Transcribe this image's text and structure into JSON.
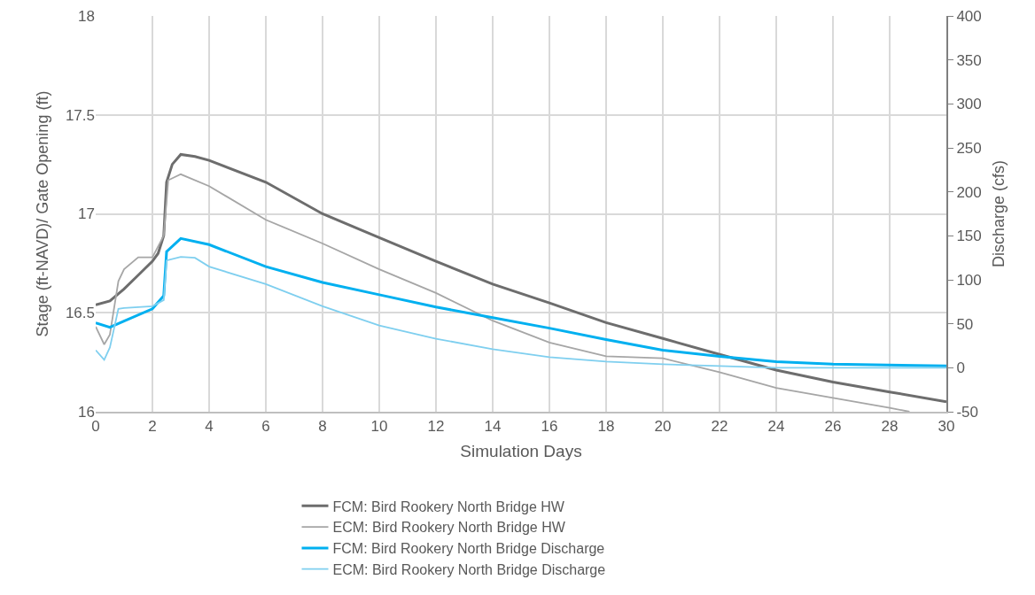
{
  "chart_data": {
    "type": "line",
    "xlabel": "Simulation Days",
    "ylabel": "Stage (ft-NAVD)/ Gate Opening (ft)",
    "y2label": "Discharge (cfs)",
    "xlim": [
      0,
      30
    ],
    "xticks": [
      0,
      2,
      4,
      6,
      8,
      10,
      12,
      14,
      16,
      18,
      20,
      22,
      24,
      26,
      28,
      30
    ],
    "ylim": [
      16,
      18
    ],
    "yticks": [
      16,
      16.5,
      17,
      17.5,
      18
    ],
    "y2lim": [
      -50,
      400
    ],
    "y2ticks": [
      -50,
      0,
      50,
      100,
      150,
      200,
      250,
      300,
      350,
      400
    ],
    "grid": true,
    "legend": "bottom",
    "marker": "none",
    "line_style": "solid",
    "series": [
      {
        "name": "FCM: Bird Rookery North Bridge HW",
        "color": "#6d6d6d",
        "x": [
          0,
          0.5,
          1,
          1.5,
          2,
          2.2,
          2.4,
          2.5,
          2.7,
          3,
          3.5,
          4,
          6,
          8,
          10,
          12,
          14,
          16,
          18,
          20,
          22,
          24,
          26,
          28,
          30
        ],
        "values": [
          16.54,
          16.56,
          16.62,
          16.69,
          16.76,
          16.8,
          16.89,
          17.16,
          17.25,
          17.3,
          17.29,
          17.27,
          17.16,
          17.0,
          16.88,
          16.76,
          16.645,
          16.55,
          16.45,
          16.37,
          16.29,
          16.21,
          16.15,
          16.1,
          16.05
        ]
      },
      {
        "name": "ECM: Bird Rookery North Bridge HW",
        "color": "#a6a6a6",
        "x": [
          0,
          0.3,
          0.5,
          0.8,
          1,
          1.5,
          2,
          2.4,
          2.56,
          3,
          4,
          6,
          8,
          10,
          12,
          14,
          16,
          18,
          20,
          22,
          24,
          26,
          28,
          28.7
        ],
        "values": [
          16.43,
          16.34,
          16.39,
          16.66,
          16.72,
          16.78,
          16.78,
          16.89,
          17.17,
          17.2,
          17.14,
          16.97,
          16.85,
          16.72,
          16.6,
          16.46,
          16.35,
          16.28,
          16.27,
          16.2,
          16.12,
          16.07,
          16.02,
          16.0
        ]
      },
      {
        "name": "FCM: Bird Rookery North Bridge Discharge",
        "color": "#00b0f0",
        "axis": "y2",
        "x": [
          0,
          0.5,
          1,
          2,
          2.4,
          2.5,
          3,
          4,
          6,
          8,
          10,
          12,
          14,
          16,
          18,
          20,
          22,
          24,
          26,
          30
        ],
        "values": [
          51,
          46,
          53,
          67,
          82,
          132,
          147,
          140,
          115,
          97,
          83,
          69,
          57,
          45,
          32,
          20,
          13,
          7,
          4,
          2
        ]
      },
      {
        "name": "ECM: Bird Rookery North Bridge Discharge",
        "color": "#7fcfef",
        "axis": "y2",
        "x": [
          0,
          0.3,
          0.5,
          0.8,
          1,
          2,
          2.4,
          2.5,
          3,
          3.5,
          4,
          6,
          8,
          10,
          12,
          14,
          16,
          18,
          20,
          22,
          24,
          30
        ],
        "values": [
          20,
          9,
          23,
          67,
          68,
          70,
          77,
          122,
          126,
          125,
          115,
          95,
          70,
          48,
          33,
          21,
          12,
          7,
          4,
          2,
          0,
          0
        ]
      }
    ]
  }
}
